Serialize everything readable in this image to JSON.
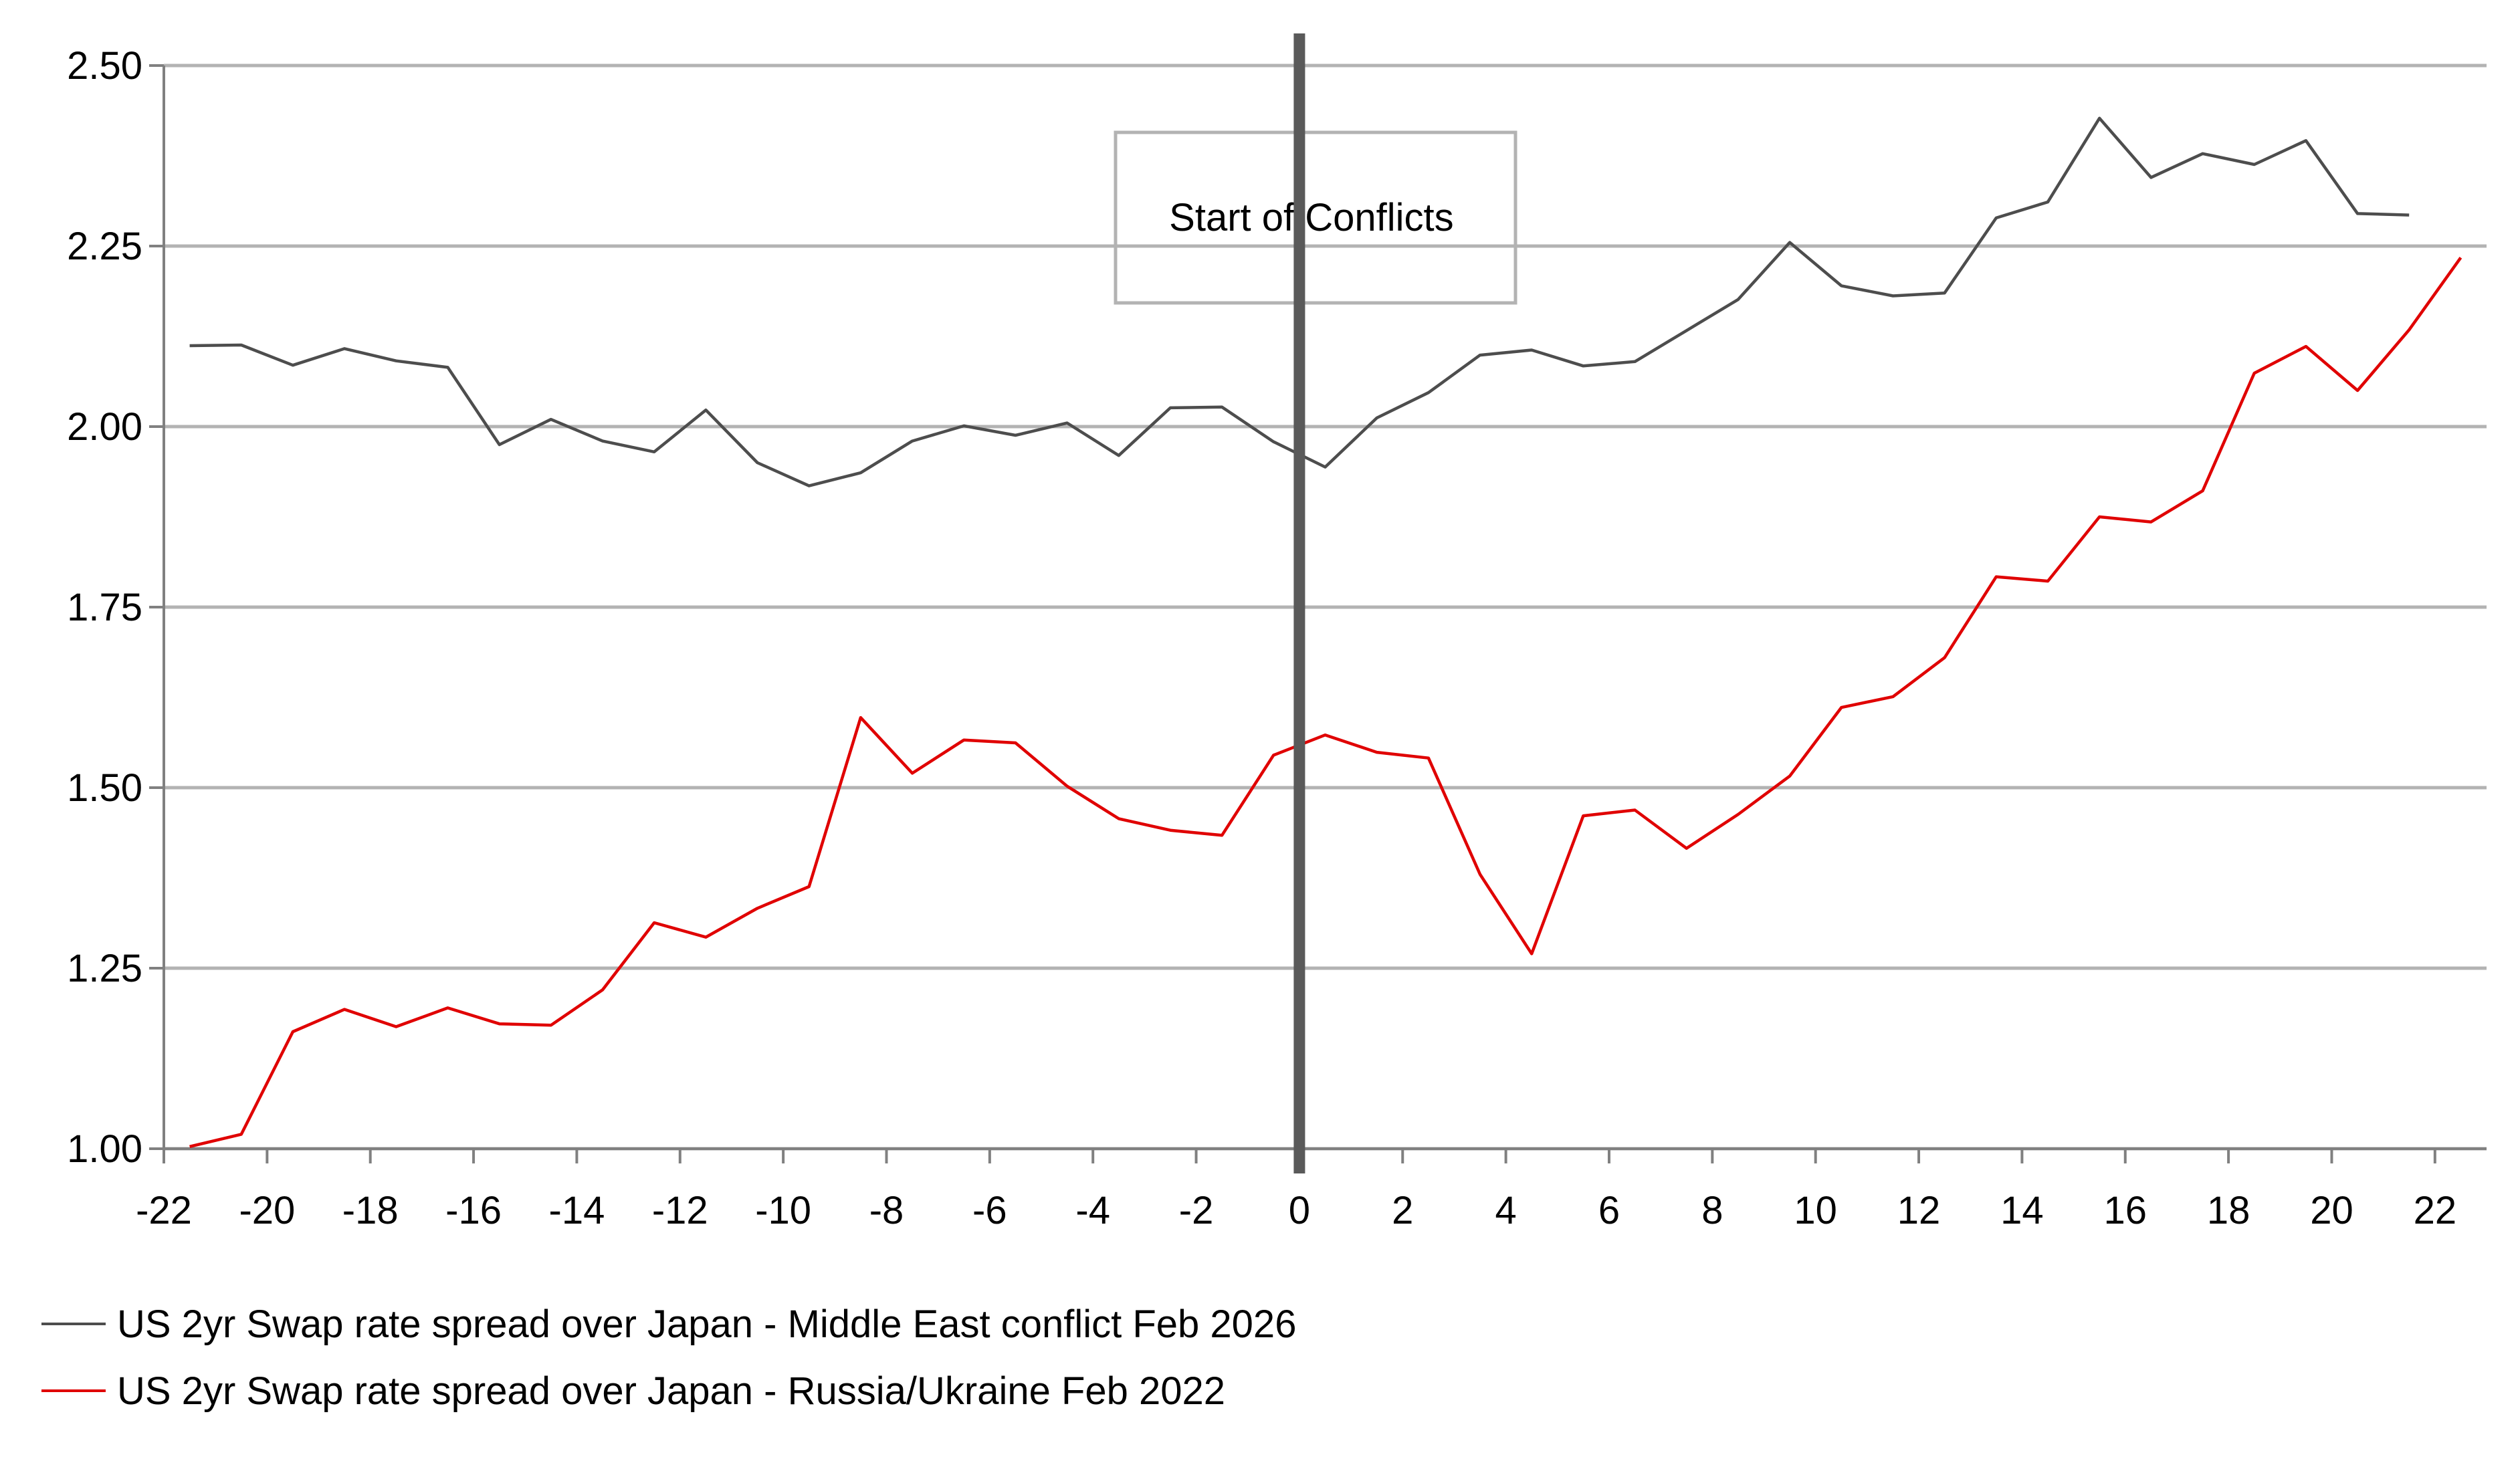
{
  "chart_data": {
    "type": "line",
    "title": "",
    "xlabel": "",
    "ylabel": "",
    "xlim": [
      -22,
      23
    ],
    "ylim": [
      1.0,
      2.5
    ],
    "x_ticks": [
      -22,
      -20,
      -18,
      -16,
      -14,
      -12,
      -10,
      -8,
      -6,
      -4,
      -2,
      0,
      2,
      4,
      6,
      8,
      10,
      12,
      14,
      16,
      18,
      20,
      22
    ],
    "y_ticks": [
      1.0,
      1.25,
      1.5,
      1.75,
      2.0,
      2.25,
      2.5
    ],
    "y_tick_labels": [
      "1.00",
      "1.25",
      "1.50",
      "1.75",
      "2.00",
      "2.25",
      "2.50"
    ],
    "grid": "horizontal",
    "legend_position": "bottom-left",
    "annotation": {
      "text": "Start of Conflicts",
      "x": 0
    },
    "series": [
      {
        "name": "US 2yr Swap rate spread over Japan - Middle East conflict Feb 2026",
        "color": "#4d4d4d",
        "x": [
          -21.5,
          -20.5,
          -19.5,
          -18.5,
          -17.5,
          -16.5,
          -15.5,
          -14.5,
          -13.5,
          -12.5,
          -11.5,
          -10.5,
          -9.5,
          -8.5,
          -7.5,
          -6.5,
          -5.5,
          -4.5,
          -3.5,
          -2.5,
          -1.5,
          -0.5,
          0.5,
          1.5,
          2.5,
          3.5,
          4.5,
          5.5,
          6.5,
          7.5,
          8.5,
          9.5,
          10.5,
          11.5,
          12.5,
          13.5,
          14.5,
          15.5,
          16.5,
          17.5,
          18.5,
          19.5,
          20.5,
          21.5
        ],
        "values": [
          2.112,
          2.113,
          2.085,
          2.108,
          2.091,
          2.082,
          1.975,
          2.01,
          1.98,
          1.965,
          2.023,
          1.95,
          1.918,
          1.936,
          1.98,
          2.001,
          1.988,
          2.005,
          1.96,
          2.026,
          2.027,
          1.979,
          1.944,
          2.012,
          2.047,
          2.099,
          2.106,
          2.084,
          2.09,
          2.133,
          2.176,
          2.255,
          2.195,
          2.181,
          2.185,
          2.289,
          2.311,
          2.427,
          2.345,
          2.378,
          2.363,
          2.396,
          2.295,
          2.293
        ]
      },
      {
        "name": "US 2yr Swap rate spread over Japan - Russia/Ukraine Feb 2022",
        "color": "#e00000",
        "x": [
          -21.5,
          -20.5,
          -19.5,
          -18.5,
          -17.5,
          -16.5,
          -15.5,
          -14.5,
          -13.5,
          -12.5,
          -11.5,
          -10.5,
          -9.5,
          -8.5,
          -7.5,
          -6.5,
          -5.5,
          -4.5,
          -3.5,
          -2.5,
          -1.5,
          -0.5,
          0.5,
          1.5,
          2.5,
          3.5,
          4.5,
          5.5,
          6.5,
          7.5,
          8.5,
          9.5,
          10.5,
          11.5,
          12.5,
          13.5,
          14.5,
          15.5,
          16.5,
          17.5,
          18.5,
          19.5,
          20.5,
          21.5,
          22.5
        ],
        "values": [
          1.003,
          1.02,
          1.162,
          1.193,
          1.169,
          1.195,
          1.173,
          1.171,
          1.22,
          1.313,
          1.293,
          1.333,
          1.363,
          1.597,
          1.52,
          1.566,
          1.562,
          1.502,
          1.457,
          1.441,
          1.434,
          1.545,
          1.573,
          1.549,
          1.541,
          1.38,
          1.27,
          1.461,
          1.469,
          1.416,
          1.463,
          1.516,
          1.611,
          1.626,
          1.68,
          1.792,
          1.786,
          1.875,
          1.868,
          1.911,
          2.074,
          2.111,
          2.05,
          2.134,
          2.234
        ]
      }
    ]
  }
}
